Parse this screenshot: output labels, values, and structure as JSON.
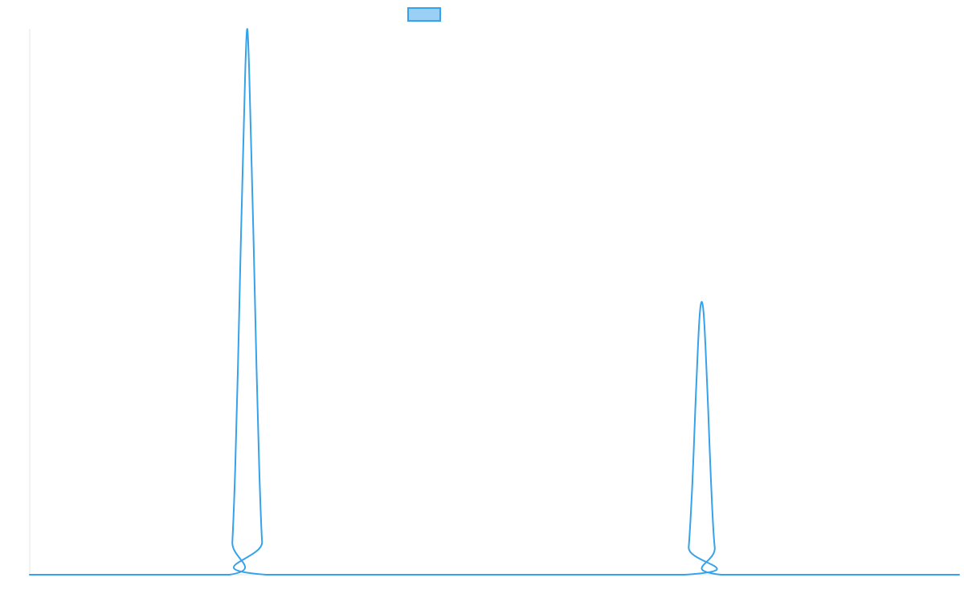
{
  "chart_data": {
    "type": "line",
    "title": "",
    "xlabel": "",
    "ylabel": "",
    "x_range": [
      0,
      1000
    ],
    "ylim": [
      0,
      1
    ],
    "grid": false,
    "legend": {
      "position": "top-center",
      "entries": [
        {
          "label": ""
        }
      ]
    },
    "series": [
      {
        "color": "#36a2eb",
        "fill": "#9ad0f5",
        "points": [
          [
            0,
            0
          ],
          [
            215,
            0
          ],
          [
            218,
            0.06
          ],
          [
            221,
            0.19
          ],
          [
            224,
            0.38
          ],
          [
            227,
            0.6
          ],
          [
            230,
            0.8
          ],
          [
            232,
            0.93
          ],
          [
            234,
            1.0
          ],
          [
            236,
            0.93
          ],
          [
            238,
            0.8
          ],
          [
            241,
            0.6
          ],
          [
            244,
            0.38
          ],
          [
            247,
            0.19
          ],
          [
            250,
            0.06
          ],
          [
            254,
            0
          ],
          [
            705,
            0
          ],
          [
            709,
            0.05
          ],
          [
            713,
            0.17
          ],
          [
            716,
            0.3
          ],
          [
            719,
            0.42
          ],
          [
            721,
            0.48
          ],
          [
            723,
            0.5
          ],
          [
            725,
            0.48
          ],
          [
            727,
            0.42
          ],
          [
            730,
            0.3
          ],
          [
            733,
            0.17
          ],
          [
            737,
            0.05
          ],
          [
            744,
            0
          ],
          [
            1000,
            0
          ]
        ]
      }
    ]
  }
}
